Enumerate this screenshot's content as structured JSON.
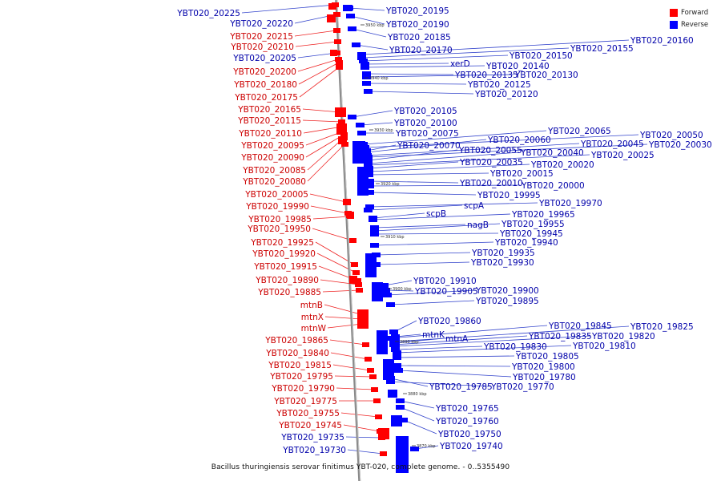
{
  "legend": {
    "forward_label": "Forward",
    "reverse_label": "Reverse",
    "forward_color": "#ff0000",
    "reverse_color": "#0000ff"
  },
  "caption": "Bacillus thuringiensis serovar finitimus YBT-020, complete genome. - 0..5355490",
  "ticks": [
    "3950 kbp",
    "3940 kbp",
    "3930 kbp",
    "3920 kbp",
    "3910 kbp",
    "3900 kbp",
    "3890 kbp",
    "3880 kbp",
    "3870 kbp"
  ],
  "forward_genes": [
    "YBT020_20225",
    "YBT020_20220",
    "YBT020_20215",
    "YBT020_20210",
    "YBT020_20205",
    "YBT020_20200",
    "YBT020_20180",
    "YBT020_20175",
    "YBT020_20165",
    "YBT020_20115",
    "YBT020_20110",
    "YBT020_20095",
    "YBT020_20090",
    "YBT020_20085",
    "YBT020_20080",
    "YBT020_20005",
    "YBT020_19990",
    "YBT020_19985",
    "YBT020_19950",
    "YBT020_19925",
    "YBT020_19920",
    "YBT020_19915",
    "YBT020_19890",
    "YBT020_19885",
    "mtnB",
    "mtnX",
    "mtnW",
    "YBT020_19865",
    "YBT020_19840",
    "YBT020_19815",
    "YBT020_19795",
    "YBT020_19790",
    "YBT020_19775",
    "YBT020_19755",
    "YBT020_19745",
    "YBT020_19735",
    "YBT020_19730"
  ],
  "forward_colors": [
    "#0000aa",
    "#0000aa",
    "#cc0000",
    "#cc0000",
    "#0000aa",
    "#cc0000",
    "#cc0000",
    "#cc0000",
    "#cc0000",
    "#cc0000",
    "#cc0000",
    "#cc0000",
    "#cc0000",
    "#cc0000",
    "#cc0000",
    "#cc0000",
    "#cc0000",
    "#cc0000",
    "#cc0000",
    "#cc0000",
    "#cc0000",
    "#cc0000",
    "#cc0000",
    "#cc0000",
    "#cc0000",
    "#cc0000",
    "#cc0000",
    "#cc0000",
    "#cc0000",
    "#cc0000",
    "#cc0000",
    "#cc0000",
    "#cc0000",
    "#cc0000",
    "#cc0000",
    "#0000aa",
    "#0000aa"
  ],
  "reverse_genes": [
    "YBT020_20195",
    "YBT020_20190",
    "YBT020_20185",
    "YBT020_20170",
    "YBT020_20160",
    "YBT020_20155",
    "YBT020_20150",
    "xerD",
    "YBT020_20140",
    "YBT020_20135",
    "YBT020_20130",
    "YBT020_20125",
    "YBT020_20120",
    "YBT020_20105",
    "YBT020_20100",
    "YBT020_20075",
    "YBT020_20065",
    "YBT020_20050",
    "YBT020_20070",
    "YBT020_20060",
    "YBT020_20045",
    "YBT020_20030",
    "YBT020_20055",
    "YBT020_20040",
    "YBT020_20025",
    "YBT020_20035",
    "YBT020_20020",
    "YBT020_20015",
    "YBT020_20010",
    "YBT020_20000",
    "YBT020_19995",
    "scpA",
    "YBT020_19970",
    "scpB",
    "YBT020_19965",
    "nagB",
    "YBT020_19955",
    "YBT020_19945",
    "YBT020_19940",
    "YBT020_19935",
    "YBT020_19930",
    "YBT020_19910",
    "YBT020_19905",
    "YBT020_19900",
    "YBT020_19895",
    "YBT020_19860",
    "mtnK",
    "YBT020_19845",
    "YBT020_19825",
    "mtnA",
    "YBT020_19835",
    "YBT020_19820",
    "YBT020_19830",
    "YBT020_19810",
    "YBT020_19805",
    "YBT020_19800",
    "YBT020_19780",
    "YBT020_19785",
    "YBT020_19770",
    "YBT020_19765",
    "YBT020_19760",
    "YBT020_19750",
    "YBT020_19740"
  ]
}
